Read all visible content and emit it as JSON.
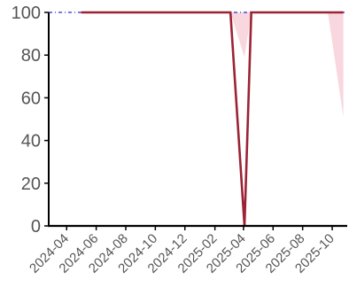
{
  "chart_data": {
    "type": "line",
    "title": "",
    "xlabel": "",
    "ylabel": "",
    "ylim": [
      0,
      100
    ],
    "xlim": [
      "2024-02-24",
      "2025-11-01"
    ],
    "grid": false,
    "legend": "none",
    "y_ticks": [
      0,
      20,
      40,
      60,
      80,
      100
    ],
    "x_ticks": [
      {
        "date": "2024-04-01",
        "label": "2024-04"
      },
      {
        "date": "2024-06-01",
        "label": "2024-06"
      },
      {
        "date": "2024-08-01",
        "label": "2024-08"
      },
      {
        "date": "2024-10-01",
        "label": "2024-10"
      },
      {
        "date": "2024-12-01",
        "label": "2024-12"
      },
      {
        "date": "2025-02-01",
        "label": "2025-02"
      },
      {
        "date": "2025-04-01",
        "label": "2025-04"
      },
      {
        "date": "2025-06-01",
        "label": "2025-06"
      },
      {
        "date": "2025-08-01",
        "label": "2025-08"
      },
      {
        "date": "2025-10-01",
        "label": "2025-10"
      }
    ],
    "reference_line": {
      "y": 100,
      "color": "#2b2bd6",
      "style": "dash-dot"
    },
    "series": [
      {
        "color": "#9b2335",
        "x": [
          "2024-05-01",
          "2025-03-05",
          "2025-04-03",
          "2025-04-17",
          "2025-10-24"
        ],
        "values": [
          100,
          100,
          0,
          100,
          100
        ]
      }
    ],
    "bands": [
      {
        "color": "#f9d7de",
        "x": [
          "2025-03-05",
          "2025-04-03",
          "2025-04-17"
        ],
        "lower": [
          100,
          79,
          100
        ],
        "upper": [
          100,
          100,
          100
        ]
      },
      {
        "color": "#f9d7de",
        "x": [
          "2025-09-22",
          "2025-10-24"
        ],
        "lower": [
          100,
          51
        ],
        "upper": [
          100,
          100
        ]
      }
    ]
  }
}
